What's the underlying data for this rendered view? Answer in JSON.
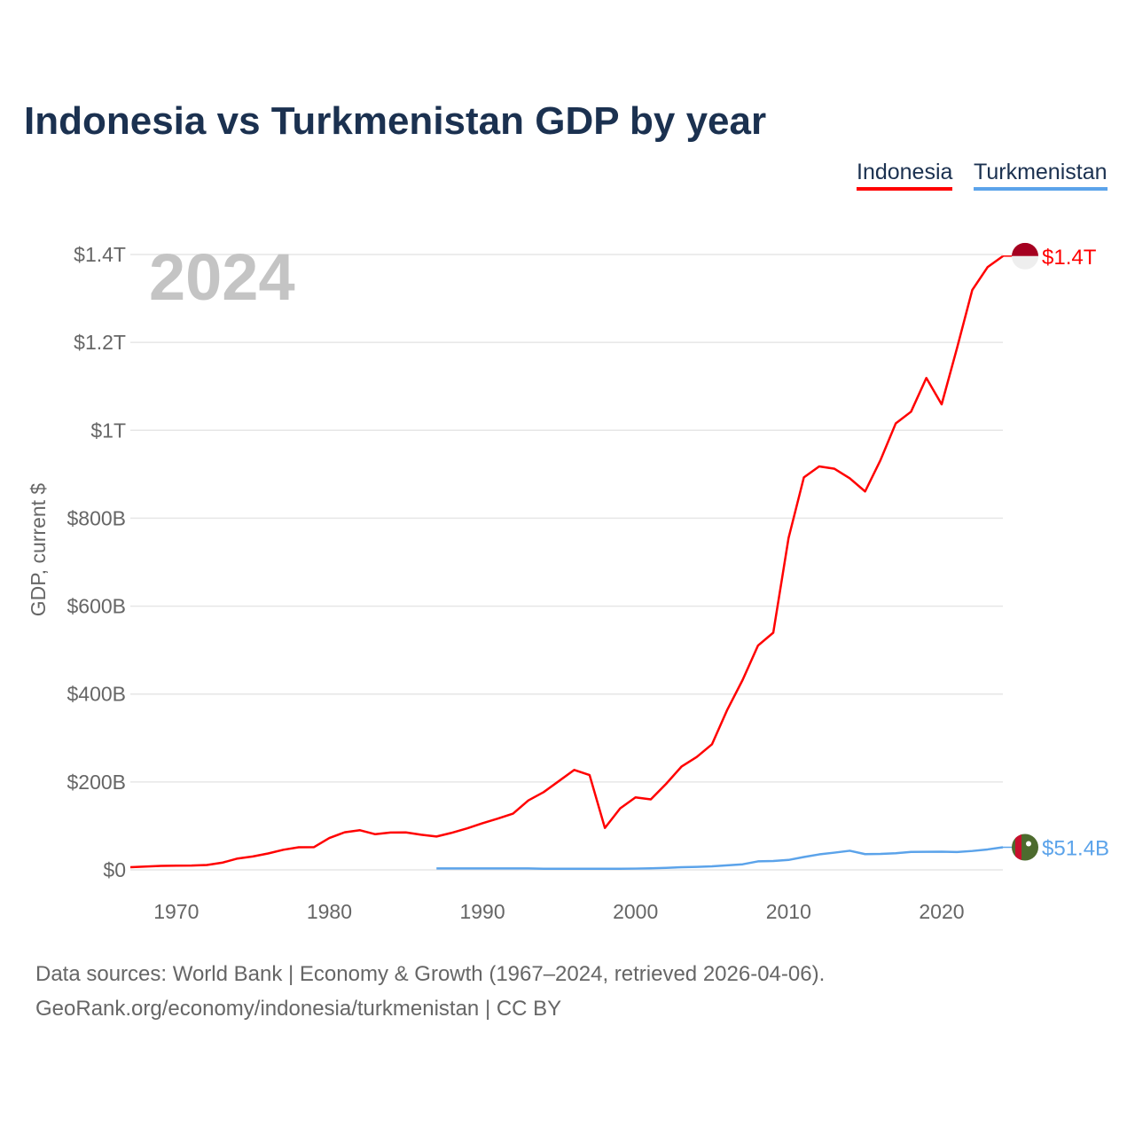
{
  "chart_data": {
    "type": "line",
    "title": "Indonesia vs Turkmenistan GDP by year",
    "xlabel": "",
    "ylabel": "GDP, current $",
    "xlim": [
      1967,
      2024
    ],
    "ylim": [
      0,
      1400
    ],
    "y_unit": "billion USD",
    "grid": true,
    "legend_position": "top-right",
    "year_watermark": "2024",
    "x_ticks": [
      1970,
      1980,
      1990,
      2000,
      2010,
      2020
    ],
    "y_ticks": [
      {
        "value": 0,
        "label": "$0"
      },
      {
        "value": 200,
        "label": "$200B"
      },
      {
        "value": 400,
        "label": "$400B"
      },
      {
        "value": 600,
        "label": "$600B"
      },
      {
        "value": 800,
        "label": "$800B"
      },
      {
        "value": 1000,
        "label": "$1T"
      },
      {
        "value": 1200,
        "label": "$1.2T"
      },
      {
        "value": 1400,
        "label": "$1.4T"
      }
    ],
    "series": [
      {
        "name": "Indonesia",
        "color": "#ff0000",
        "end_label": "$1.4T",
        "x_start": 1967,
        "values": [
          6.0,
          7.6,
          9.2,
          9.7,
          9.9,
          11.0,
          16.3,
          25.8,
          30.5,
          37.3,
          45.8,
          51.5,
          51.8,
          72.5,
          85.5,
          90.2,
          81.1,
          84.9,
          85.3,
          79.9,
          75.9,
          84.3,
          94.5,
          106.1,
          116.6,
          128.0,
          158.0,
          176.9,
          202.1,
          227.4,
          215.7,
          95.4,
          140.0,
          165.0,
          160.4,
          195.7,
          234.8,
          256.8,
          285.9,
          364.6,
          432.2,
          510.2,
          539.6,
          755.1,
          892.9,
          917.9,
          912.5,
          890.8,
          860.9,
          931.9,
          1015.6,
          1042.3,
          1119.1,
          1059.1,
          1186.5,
          1319.1,
          1371.2,
          1396.3
        ]
      },
      {
        "name": "Turkmenistan",
        "color": "#5ba3ea",
        "end_label": "$51.4B",
        "x_start": 1987,
        "values": [
          3.2,
          3.4,
          3.4,
          3.2,
          3.2,
          3.2,
          3.2,
          2.6,
          2.5,
          2.4,
          2.6,
          2.6,
          2.5,
          2.9,
          3.5,
          4.5,
          6.0,
          6.8,
          8.1,
          10.3,
          12.7,
          19.3,
          20.2,
          22.6,
          29.2,
          35.2,
          39.2,
          43.5,
          35.8,
          36.2,
          37.9,
          40.8,
          41.0,
          41.3,
          40.5,
          43.0,
          46.5,
          51.4
        ]
      }
    ]
  },
  "footer": {
    "line1": "Data sources: World Bank | Economy & Growth (1967–2024, retrieved 2026-04-06).",
    "line2": "GeoRank.org/economy/indonesia/turkmenistan | CC BY"
  }
}
